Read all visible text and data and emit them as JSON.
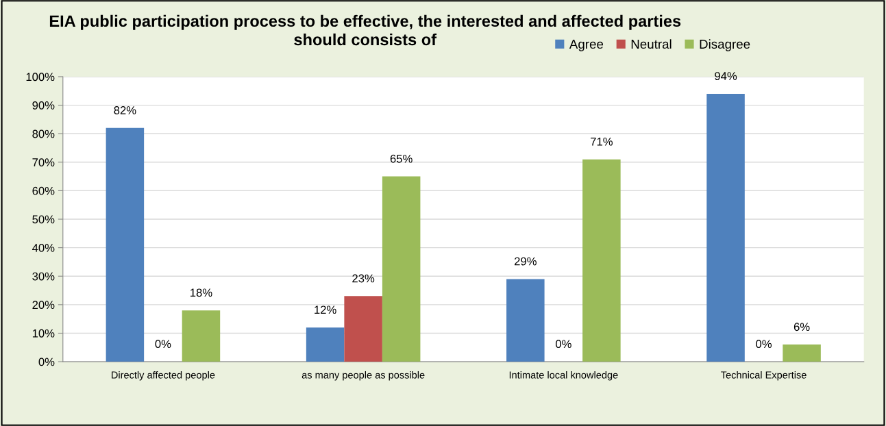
{
  "chart_data": {
    "type": "bar",
    "title": "EIA public participation process to be effective, the interested and affected parties\nshould consists of",
    "categories": [
      "Directly affected people",
      "as many people as possible",
      "Intimate local knowledge",
      "Technical Expertise"
    ],
    "series": [
      {
        "name": "Agree",
        "color": "#4f81bd",
        "values": [
          82,
          12,
          29,
          94
        ],
        "value_labels": [
          "82%",
          "12%",
          "29%",
          "94%"
        ]
      },
      {
        "name": "Neutral",
        "color": "#c0504d",
        "values": [
          0,
          23,
          0,
          0
        ],
        "value_labels": [
          "0%",
          "23%",
          "0%",
          "0%"
        ]
      },
      {
        "name": "Disagree",
        "color": "#9bbb59",
        "values": [
          18,
          65,
          71,
          6
        ],
        "value_labels": [
          "18%",
          "65%",
          "71%",
          "6%"
        ]
      }
    ],
    "ylim": [
      0,
      100
    ],
    "yticks": [
      {
        "value": 0,
        "label": "0%"
      },
      {
        "value": 10,
        "label": "10%"
      },
      {
        "value": 20,
        "label": "20%"
      },
      {
        "value": 30,
        "label": "30%"
      },
      {
        "value": 40,
        "label": "40%"
      },
      {
        "value": 50,
        "label": "50%"
      },
      {
        "value": 60,
        "label": "60%"
      },
      {
        "value": 70,
        "label": "70%"
      },
      {
        "value": 80,
        "label": "80%"
      },
      {
        "value": 90,
        "label": "90%"
      },
      {
        "value": 100,
        "label": "100%"
      }
    ],
    "grid": "y",
    "legend": "top right"
  }
}
